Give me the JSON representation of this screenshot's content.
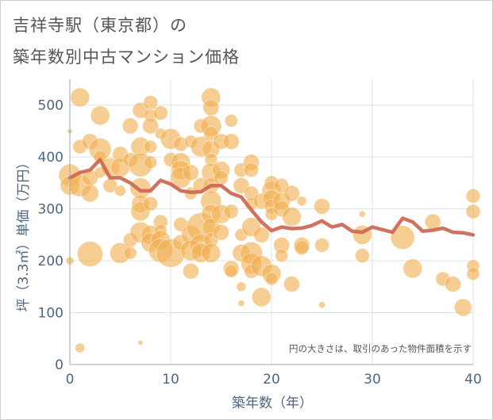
{
  "title_line1": "吉祥寺駅（東京都）の",
  "title_line2": "築年数別中古マンション価格",
  "chart_data": {
    "type": "scatter",
    "xlabel": "築年数（年）",
    "ylabel": "坪（3.3㎡）単価（万円）",
    "xlim": [
      0,
      40
    ],
    "ylim": [
      0,
      550
    ],
    "xticks": [
      0,
      10,
      20,
      30,
      40
    ],
    "yticks": [
      0,
      100,
      200,
      300,
      400,
      500
    ],
    "grid": true,
    "annotation": "円の大きさは、取引のあった物件面積を示す",
    "colors": {
      "bubble": "#f0b050",
      "line": "#cf6a55",
      "axis_text": "#4d6680",
      "grid": "#dbe3ea"
    },
    "avg_line": {
      "x": [
        0,
        1,
        2,
        3,
        4,
        5,
        6,
        7,
        8,
        9,
        10,
        11,
        12,
        13,
        14,
        15,
        16,
        17,
        18,
        19,
        20,
        21,
        22,
        23,
        24,
        25,
        26,
        27,
        28,
        29,
        30,
        31,
        32,
        33,
        34,
        35,
        36,
        37,
        38,
        39,
        40
      ],
      "y": [
        360,
        370,
        375,
        395,
        360,
        360,
        350,
        335,
        335,
        355,
        348,
        335,
        332,
        333,
        345,
        345,
        330,
        323,
        298,
        275,
        258,
        265,
        262,
        263,
        268,
        277,
        265,
        270,
        257,
        255,
        265,
        260,
        255,
        282,
        275,
        257,
        259,
        263,
        255,
        254,
        250
      ]
    },
    "bubbles": [
      [
        0,
        365,
        14
      ],
      [
        0,
        345,
        12
      ],
      [
        0,
        450,
        3
      ],
      [
        0,
        200,
        5
      ],
      [
        1,
        515,
        12
      ],
      [
        1,
        420,
        9
      ],
      [
        1,
        345,
        14
      ],
      [
        1,
        32,
        6
      ],
      [
        2,
        430,
        10
      ],
      [
        2,
        360,
        10
      ],
      [
        2,
        330,
        11
      ],
      [
        2,
        213,
        16
      ],
      [
        3,
        480,
        12
      ],
      [
        3,
        415,
        14
      ],
      [
        3,
        400,
        8
      ],
      [
        3,
        370,
        7
      ],
      [
        4,
        380,
        12
      ],
      [
        4,
        345,
        9
      ],
      [
        5,
        405,
        10
      ],
      [
        5,
        380,
        12
      ],
      [
        5,
        335,
        7
      ],
      [
        5,
        215,
        13
      ],
      [
        6,
        460,
        10
      ],
      [
        6,
        395,
        9
      ],
      [
        6,
        240,
        9
      ],
      [
        6,
        215,
        8
      ],
      [
        7,
        490,
        10
      ],
      [
        7,
        420,
        12
      ],
      [
        7,
        385,
        15
      ],
      [
        7,
        340,
        13
      ],
      [
        7,
        310,
        11
      ],
      [
        7,
        295,
        12
      ],
      [
        7,
        255,
        13
      ],
      [
        7,
        42,
        3
      ],
      [
        8,
        505,
        9
      ],
      [
        8,
        480,
        8
      ],
      [
        8,
        460,
        10
      ],
      [
        8,
        420,
        8
      ],
      [
        8,
        390,
        8
      ],
      [
        8,
        310,
        9
      ],
      [
        8,
        250,
        12
      ],
      [
        8,
        235,
        12
      ],
      [
        9,
        485,
        9
      ],
      [
        9,
        445,
        7
      ],
      [
        9,
        275,
        9
      ],
      [
        9,
        258,
        8
      ],
      [
        9,
        240,
        12
      ],
      [
        9,
        220,
        15
      ],
      [
        10,
        435,
        13
      ],
      [
        10,
        395,
        9
      ],
      [
        10,
        215,
        18
      ],
      [
        11,
        425,
        9
      ],
      [
        11,
        390,
        12
      ],
      [
        11,
        375,
        12
      ],
      [
        11,
        360,
        13
      ],
      [
        11,
        270,
        9
      ],
      [
        11,
        235,
        10
      ],
      [
        12,
        430,
        8
      ],
      [
        12,
        370,
        10
      ],
      [
        12,
        330,
        8
      ],
      [
        12,
        250,
        12
      ],
      [
        12,
        220,
        13
      ],
      [
        12,
        180,
        10
      ],
      [
        13,
        460,
        9
      ],
      [
        13,
        420,
        13
      ],
      [
        13,
        345,
        10
      ],
      [
        13,
        265,
        18
      ],
      [
        13,
        230,
        14
      ],
      [
        13,
        215,
        12
      ],
      [
        14,
        515,
        12
      ],
      [
        14,
        495,
        10
      ],
      [
        14,
        460,
        13
      ],
      [
        14,
        445,
        9
      ],
      [
        14,
        415,
        11
      ],
      [
        14,
        395,
        8
      ],
      [
        14,
        370,
        12
      ],
      [
        14,
        345,
        10
      ],
      [
        14,
        315,
        13
      ],
      [
        14,
        290,
        12
      ],
      [
        14,
        265,
        11
      ],
      [
        14,
        240,
        9
      ],
      [
        14,
        215,
        12
      ],
      [
        15,
        430,
        10
      ],
      [
        15,
        375,
        11
      ],
      [
        15,
        360,
        9
      ],
      [
        15,
        290,
        12
      ],
      [
        15,
        255,
        10
      ],
      [
        16,
        470,
        8
      ],
      [
        16,
        430,
        10
      ],
      [
        16,
        295,
        9
      ],
      [
        16,
        185,
        10
      ],
      [
        16,
        180,
        8
      ],
      [
        17,
        375,
        9
      ],
      [
        17,
        345,
        10
      ],
      [
        17,
        250,
        8
      ],
      [
        17,
        215,
        11
      ],
      [
        17,
        150,
        6
      ],
      [
        17,
        118,
        4
      ],
      [
        18,
        390,
        10
      ],
      [
        18,
        375,
        9
      ],
      [
        18,
        330,
        9
      ],
      [
        18,
        310,
        8
      ],
      [
        18,
        265,
        12
      ],
      [
        18,
        215,
        14
      ],
      [
        18,
        195,
        13
      ],
      [
        18,
        180,
        9
      ],
      [
        19,
        315,
        10
      ],
      [
        19,
        250,
        10
      ],
      [
        19,
        190,
        13
      ],
      [
        19,
        130,
        12
      ],
      [
        20,
        350,
        9
      ],
      [
        20,
        335,
        12
      ],
      [
        20,
        320,
        11
      ],
      [
        20,
        305,
        9
      ],
      [
        20,
        290,
        8
      ],
      [
        20,
        175,
        12
      ],
      [
        20,
        165,
        8
      ],
      [
        21,
        345,
        9
      ],
      [
        21,
        315,
        11
      ],
      [
        21,
        300,
        10
      ],
      [
        21,
        230,
        10
      ],
      [
        21,
        210,
        8
      ],
      [
        22,
        330,
        10
      ],
      [
        22,
        285,
        12
      ],
      [
        22,
        155,
        10
      ],
      [
        23,
        315,
        6
      ],
      [
        23,
        230,
        10
      ],
      [
        23,
        225,
        9
      ],
      [
        25,
        305,
        10
      ],
      [
        25,
        230,
        9
      ],
      [
        25,
        115,
        4
      ],
      [
        29,
        250,
        12
      ],
      [
        29,
        210,
        9
      ],
      [
        29,
        290,
        4
      ],
      [
        33,
        245,
        15
      ],
      [
        34,
        185,
        12
      ],
      [
        36,
        275,
        10
      ],
      [
        37,
        165,
        9
      ],
      [
        38,
        155,
        10
      ],
      [
        39,
        110,
        11
      ],
      [
        40,
        325,
        9
      ],
      [
        40,
        295,
        9
      ],
      [
        40,
        190,
        8
      ],
      [
        40,
        175,
        8
      ]
    ]
  }
}
